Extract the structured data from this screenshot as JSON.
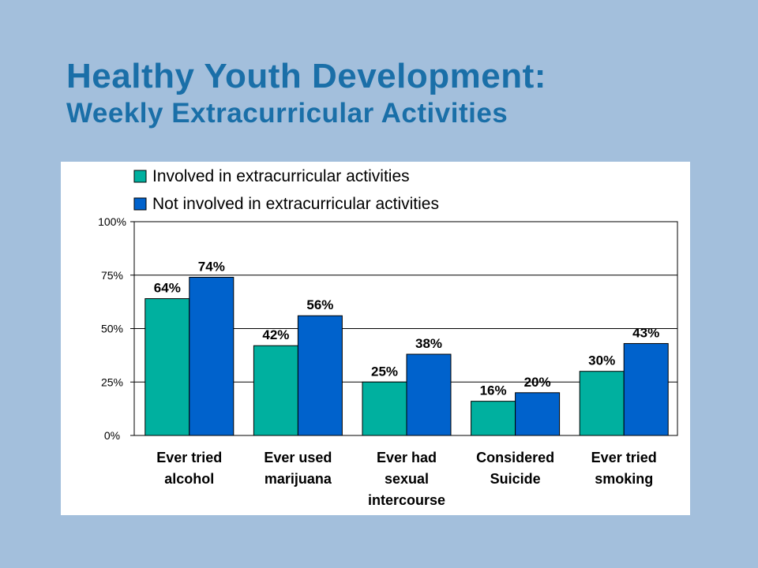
{
  "slide": {
    "title": "Healthy Youth Development:",
    "subtitle": "Weekly Extracurricular Activities"
  },
  "chart_data": {
    "type": "bar",
    "categories": [
      [
        "Ever tried",
        "alcohol"
      ],
      [
        "Ever used",
        "marijuana"
      ],
      [
        "Ever had",
        "sexual",
        "intercourse"
      ],
      [
        "Considered",
        "Suicide"
      ],
      [
        "Ever tried",
        "smoking"
      ]
    ],
    "series": [
      {
        "name": "Involved in extracurricular activities",
        "color": "#00b09f",
        "values": [
          64,
          42,
          25,
          16,
          30
        ],
        "labels": [
          "64%",
          "42%",
          "25%",
          "16%",
          "30%"
        ]
      },
      {
        "name": "Not involved in extracurricular activities",
        "color": "#0062cc",
        "values": [
          74,
          56,
          38,
          20,
          43
        ],
        "labels": [
          "74%",
          "56%",
          "38%",
          "20%",
          "43%"
        ]
      }
    ],
    "ylim": [
      0,
      100
    ],
    "yticks": [
      0,
      25,
      50,
      75,
      100
    ],
    "ytick_labels": [
      "0%",
      "25%",
      "50%",
      "75%",
      "100%"
    ],
    "grid": true,
    "legend": "top-left"
  }
}
